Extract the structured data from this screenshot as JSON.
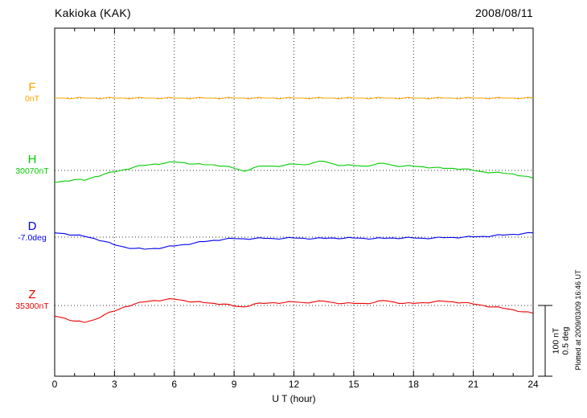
{
  "chart_data": {
    "type": "line",
    "title": "Kakioka (KAK)",
    "date": "2008/08/11",
    "xlabel": "U T (hour)",
    "xlim": [
      0,
      24
    ],
    "x_ticks": [
      0,
      3,
      6,
      9,
      12,
      15,
      18,
      21,
      24
    ],
    "x_step_hours": 0.5,
    "grid": "dotted vertical at every 3h, dotted horizontal baseline per channel",
    "legend_position": "left margin, one colored label per channel",
    "series": [
      {
        "name": "F",
        "label_value": "0nT",
        "unit": "nT",
        "baseline": 0,
        "color": "#FFA500",
        "values": [
          0,
          0,
          0,
          0,
          0,
          0,
          0,
          0,
          0,
          0,
          0,
          0,
          0,
          0,
          0,
          0,
          0,
          0,
          0,
          0,
          0,
          0,
          0,
          0,
          0,
          0,
          0,
          0,
          0,
          0,
          0,
          0,
          0,
          0,
          0,
          0,
          0,
          0,
          0,
          0,
          0,
          0,
          0,
          0,
          0,
          0,
          0,
          0,
          0
        ]
      },
      {
        "name": "H",
        "label_value": "30070nT",
        "unit": "nT",
        "baseline": 30070,
        "color": "#00CC00",
        "values": [
          -17,
          -15,
          -13,
          -14,
          -9,
          -5,
          -2,
          1,
          5,
          7,
          9,
          10,
          12,
          11,
          9,
          8,
          8,
          6,
          3,
          -1,
          4,
          6,
          6,
          7,
          9,
          8,
          11,
          13,
          9,
          7,
          7,
          6,
          8,
          10,
          7,
          6,
          6,
          5,
          4,
          3,
          3,
          2,
          0,
          -2,
          -3,
          -4,
          -5,
          -8,
          -11
        ]
      },
      {
        "name": "D",
        "label_value": "-7.0deg",
        "unit": "deg",
        "baseline": -7.0,
        "color": "#0000EE",
        "values": [
          0.03,
          0.025,
          0.015,
          0.005,
          -0.01,
          -0.03,
          -0.055,
          -0.07,
          -0.08,
          -0.085,
          -0.08,
          -0.072,
          -0.062,
          -0.052,
          -0.042,
          -0.032,
          -0.022,
          -0.015,
          -0.01,
          -0.012,
          -0.01,
          -0.008,
          -0.01,
          -0.008,
          -0.006,
          -0.008,
          -0.01,
          -0.008,
          -0.006,
          -0.008,
          -0.006,
          -0.008,
          -0.01,
          -0.008,
          -0.006,
          -0.005,
          -0.006,
          -0.008,
          -0.006,
          -0.004,
          -0.002,
          0.0,
          0.002,
          0.005,
          0.01,
          0.015,
          0.02,
          0.025,
          0.03
        ]
      },
      {
        "name": "Z",
        "label_value": "35300nT",
        "unit": "nT",
        "baseline": 35300,
        "color": "#EE0000",
        "values": [
          -15,
          -18,
          -22,
          -24,
          -20,
          -13,
          -8,
          -2,
          2,
          5,
          7,
          8,
          9,
          7,
          5,
          4,
          3,
          2,
          -1,
          -2,
          2,
          3,
          4,
          4,
          5,
          4,
          5,
          6,
          4,
          3,
          3,
          3,
          4,
          7,
          5,
          3,
          3,
          4,
          5,
          6,
          5,
          4,
          2,
          0,
          -2,
          -4,
          -6,
          -9,
          -11
        ]
      }
    ],
    "scale_bar": {
      "label_nt": "100 nT",
      "label_deg": "0.5 deg",
      "nT": 100,
      "deg": 0.5
    },
    "footer_note": "Plotted at 2009/03/09 16:46 UT"
  }
}
